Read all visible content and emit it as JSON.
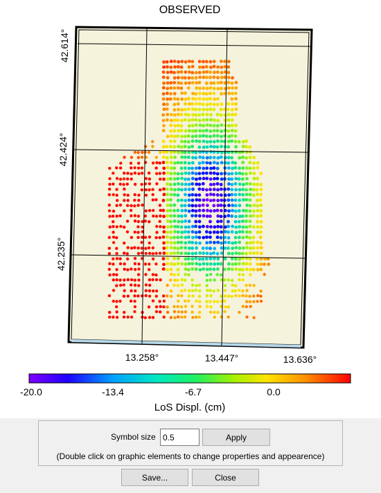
{
  "window": {
    "title": "OBSERVED"
  },
  "chart_data": {
    "type": "scatter",
    "title": "OBSERVED",
    "x_ticks": [
      "13.258°",
      "13.447°",
      "13.636°"
    ],
    "y_ticks": [
      "42.614°",
      "42.424°",
      "42.235°"
    ],
    "colorbar": {
      "label": "LoS Displ. (cm)",
      "ticks": [
        "-20.0",
        "-13.4",
        "-6.7",
        "0.0"
      ],
      "range": [
        -20.0,
        6.7
      ],
      "colormap": [
        "#7f00ff",
        "#0000ff",
        "#00b4ff",
        "#00e0a0",
        "#40f040",
        "#c8f000",
        "#ffe000",
        "#ff9000",
        "#ff2a00",
        "#ff0000"
      ]
    },
    "background_color": "#f5f3dc",
    "grid": true,
    "description_values": {
      "min_displacement": -20.0,
      "center_lon_approx": 13.42,
      "center_lat_approx": 42.33
    }
  },
  "controls": {
    "symbol_size_label": "Symbol size",
    "symbol_size_value": "0.5",
    "apply_label": "Apply",
    "hint": "(Double click on graphic elements to change properties and appearence)",
    "save_label": "Save...",
    "close_label": "Close"
  }
}
